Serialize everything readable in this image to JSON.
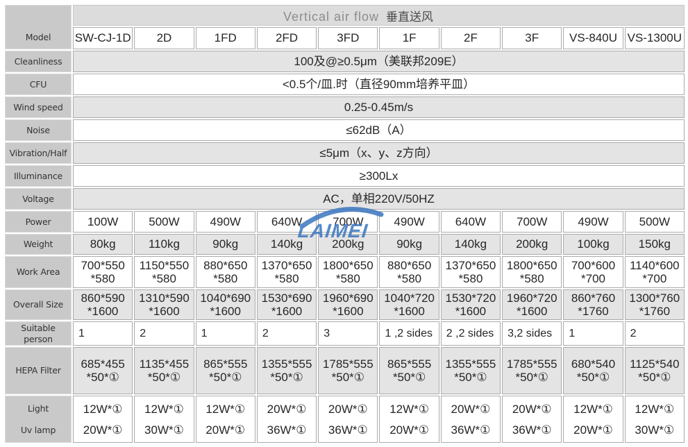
{
  "title": {
    "en": "Vertical air flow",
    "zh": "垂直送风"
  },
  "watermark": {
    "text": "LAIMEI",
    "color": "#3a76c0"
  },
  "labels": {
    "model": "Model",
    "cleanliness": "Cleanliness",
    "cfu": "CFU",
    "wind_speed": "Wind speed",
    "noise": "Noise",
    "vibration": "Vibration/Half",
    "illuminance": "Illuminance",
    "voltage": "Voltage",
    "power": "Power",
    "weight": "Weight",
    "work_area": "Work Area",
    "overall_size": "Overall Size",
    "suitable_person": "Suitable person",
    "hepa_filter": "HEPA Filter",
    "light": "Light",
    "uv_lamp": "Uv lamp"
  },
  "models": [
    "SW-CJ-1D",
    "2D",
    "1FD",
    "2FD",
    "3FD",
    "1F",
    "2F",
    "3F",
    "VS-840U",
    "VS-1300U"
  ],
  "specs_merged": {
    "cleanliness": "100及@≥0.5μm（美联邦209E）",
    "cfu": "<0.5个/皿.时（直径90mm培养平皿）",
    "wind_speed": "0.25-0.45m/s",
    "noise": "≤62dB（A）",
    "vibration": "≤5μm（x、y、z方向）",
    "illuminance": "≥300Lx",
    "voltage": "AC，单相220V/50HZ"
  },
  "power": [
    "100W",
    "500W",
    "490W",
    "640W",
    "700W",
    "490W",
    "640W",
    "700W",
    "490W",
    "500W"
  ],
  "weight": [
    "80kg",
    "110kg",
    "90kg",
    "140kg",
    "200kg",
    "90kg",
    "140kg",
    "200kg",
    "100kg",
    "150kg"
  ],
  "work_area": [
    "700*550\n*580",
    "1150*550\n*580",
    "880*650\n*580",
    "1370*650\n*580",
    "1800*650\n*580",
    "880*650\n*580",
    "1370*650\n*580",
    "1800*650\n*580",
    "700*600\n*700",
    "1140*600\n*700"
  ],
  "overall_size": [
    "860*590\n*1600",
    "1310*590\n*1600",
    "1040*690\n*1600",
    "1530*690\n*1600",
    "1960*690\n*1600",
    "1040*720\n*1600",
    "1530*720\n*1600",
    "1960*720\n*1600",
    "860*760\n*1760",
    "1300*760\n*1760"
  ],
  "suitable_person": [
    "1",
    "2",
    "1",
    "2",
    "3",
    "1 ,2 sides",
    "2 ,2 sides",
    "3,2 sides",
    "1",
    "2"
  ],
  "hepa_filter": [
    "685*455\n*50*①",
    "1135*455\n*50*①",
    "865*555\n*50*①",
    "1355*555\n*50*①",
    "1785*555\n*50*①",
    "865*555\n*50*①",
    "1355*555\n*50*①",
    "1785*555\n*50*①",
    "680*540\n*50*①",
    "1125*540\n*50*①"
  ],
  "light": [
    "12W*①",
    "12W*①",
    "12W*①",
    "20W*①",
    "20W*①",
    "12W*①",
    "20W*①",
    "20W*①",
    "12W*①",
    "12W*①"
  ],
  "uv_lamp": [
    "20W*①",
    "30W*①",
    "20W*①",
    "36W*①",
    "36W*①",
    "20W*①",
    "36W*①",
    "36W*①",
    "20W*①",
    "30W*①"
  ]
}
